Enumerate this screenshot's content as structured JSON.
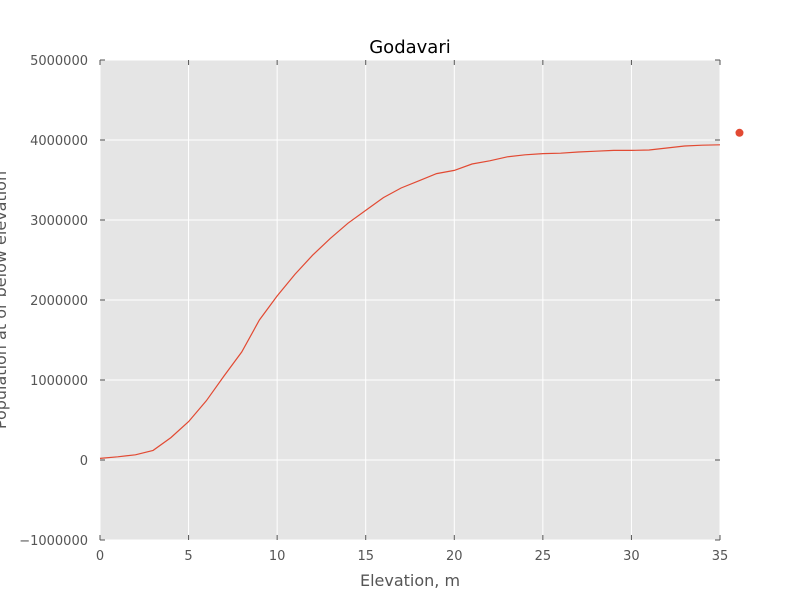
{
  "chart_data": {
    "type": "line",
    "title": "Godavari",
    "xlabel": "Elevation, m",
    "ylabel": "Population at or below elevation",
    "xlim": [
      0,
      35
    ],
    "ylim": [
      -1000000,
      5000000
    ],
    "x_ticks": [
      0,
      5,
      10,
      15,
      20,
      25,
      30,
      35
    ],
    "x_tick_labels": [
      "0",
      "5",
      "10",
      "15",
      "20",
      "25",
      "30",
      "35"
    ],
    "y_ticks": [
      -1000000,
      0,
      1000000,
      2000000,
      3000000,
      4000000,
      5000000
    ],
    "y_tick_labels": [
      "−1000000",
      "0",
      "1000000",
      "2000000",
      "3000000",
      "4000000",
      "5000000"
    ],
    "grid": true,
    "colors": {
      "plot_background": "#e5e5e5",
      "grid": "#ffffff",
      "line": "#e24a33",
      "text": "#555555"
    },
    "series": [
      {
        "color": "#e24a33",
        "x": [
          0,
          1,
          2,
          3,
          4,
          5,
          6,
          7,
          8,
          9,
          10,
          11,
          12,
          13,
          14,
          15,
          16,
          17,
          18,
          19,
          20,
          21,
          22,
          23,
          24,
          25,
          26,
          27,
          28,
          29,
          30,
          31,
          32,
          33,
          34,
          35
        ],
        "y": [
          20000,
          40000,
          65000,
          120000,
          280000,
          480000,
          740000,
          1050000,
          1350000,
          1750000,
          2050000,
          2320000,
          2560000,
          2770000,
          2960000,
          3120000,
          3280000,
          3400000,
          3490000,
          3580000,
          3620000,
          3700000,
          3740000,
          3790000,
          3815000,
          3830000,
          3835000,
          3850000,
          3860000,
          3870000,
          3870000,
          3875000,
          3900000,
          3925000,
          3935000,
          3940000
        ]
      }
    ],
    "markers": [
      {
        "x": 36.1,
        "y": 4090000,
        "color": "#e24a33"
      }
    ]
  }
}
